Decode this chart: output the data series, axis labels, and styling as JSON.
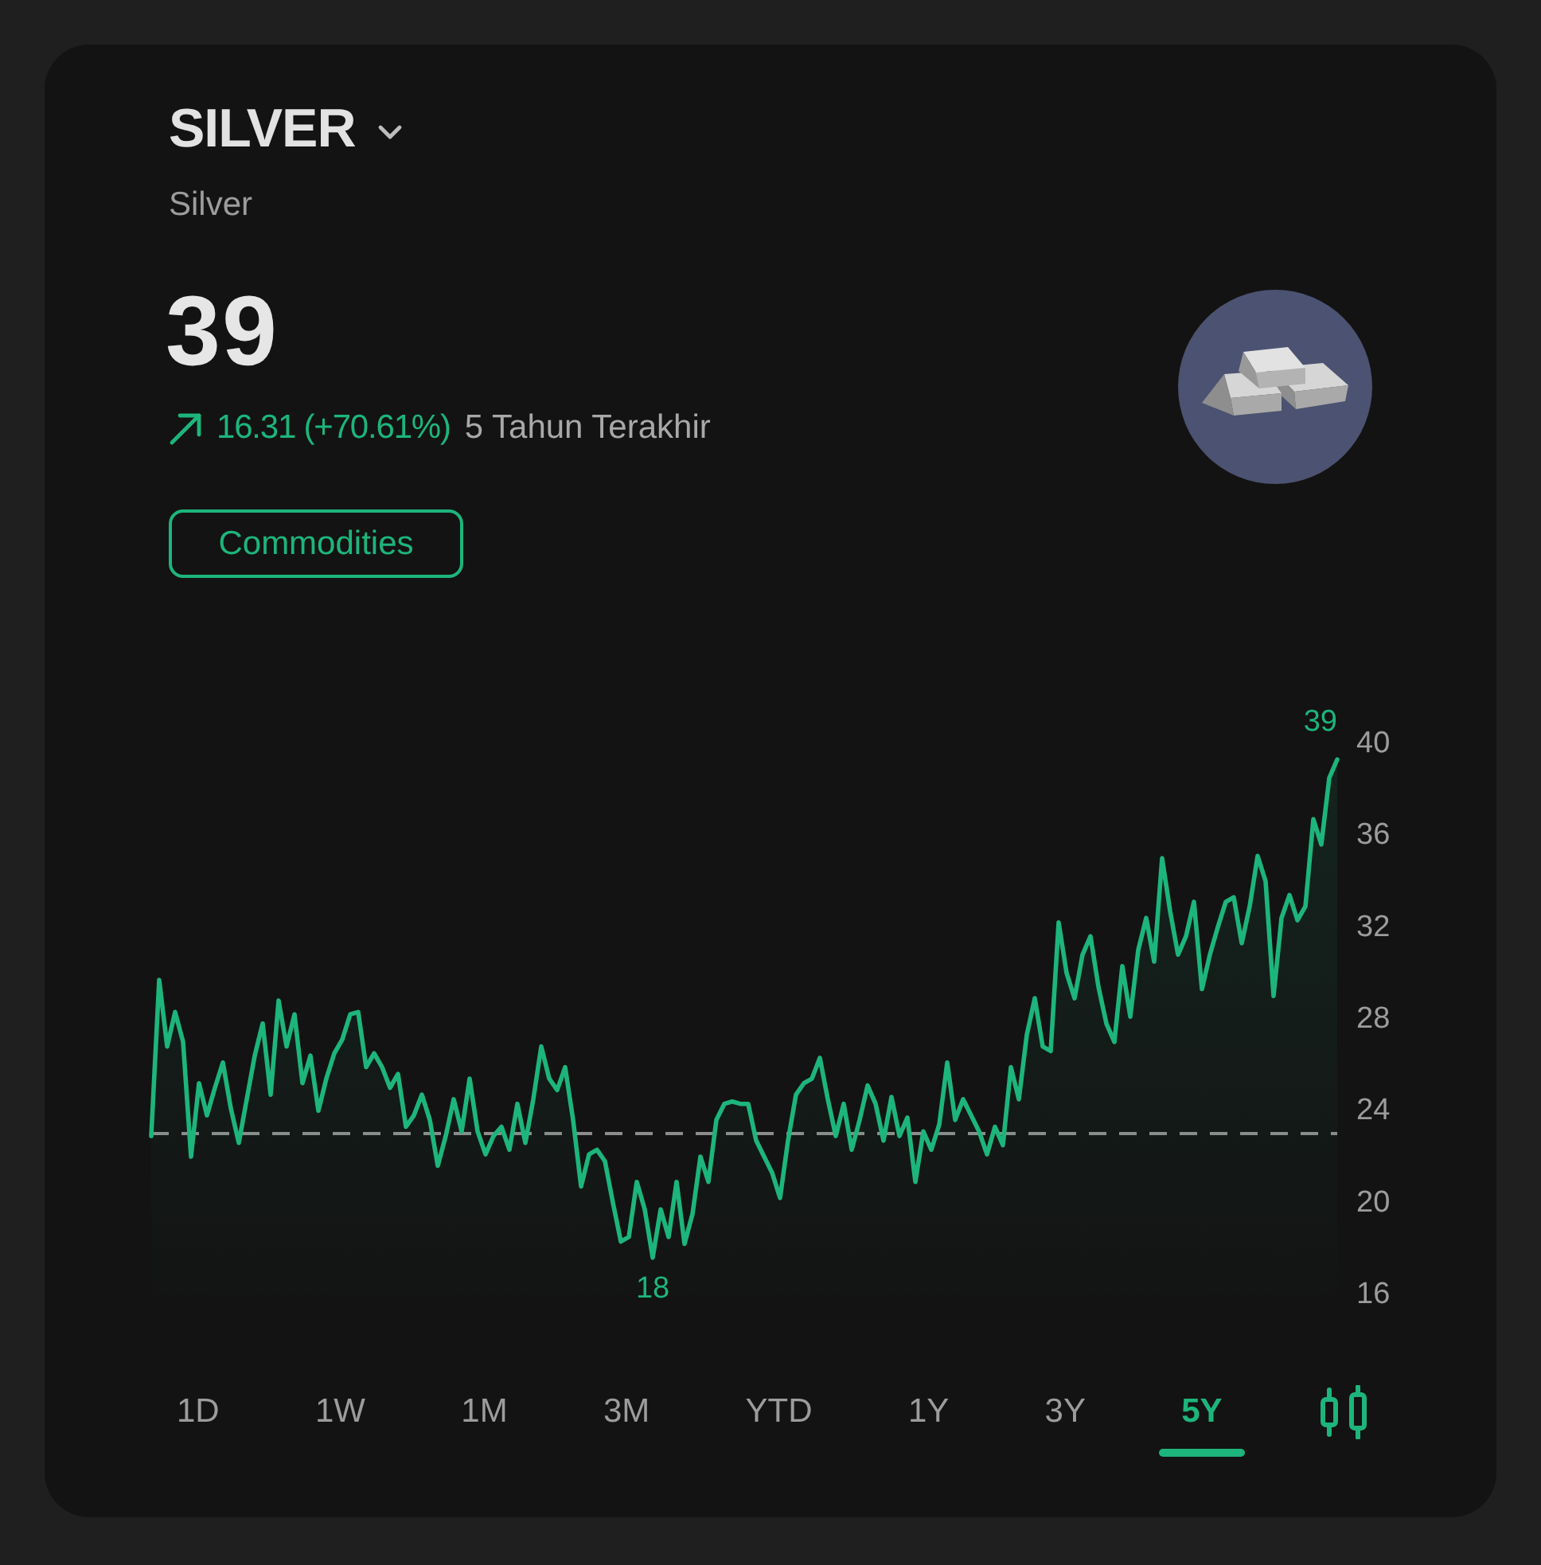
{
  "chart_data": {
    "type": "area",
    "title": "SILVER",
    "subtitle": "Silver",
    "annotations": [
      "39",
      "16.31 (+70.61%)",
      "5 Tahun Terakhir",
      "Commodities",
      "1D",
      "1W",
      "1M",
      "3M",
      "YTD",
      "1Y",
      "3Y",
      "5Y"
    ],
    "categories": [
      null,
      null,
      null,
      null,
      null,
      null,
      null,
      null,
      null,
      null,
      null,
      null,
      null,
      null,
      null,
      null,
      null,
      null,
      null,
      null,
      null,
      null,
      null,
      null,
      null,
      null,
      null,
      null,
      null,
      null,
      null,
      null,
      null,
      null,
      null,
      null,
      null,
      null,
      null,
      null,
      null,
      null,
      null,
      null,
      null,
      null,
      null,
      null,
      null,
      null,
      null,
      null,
      null,
      null,
      null,
      null,
      null,
      null,
      null,
      null,
      null,
      null,
      null,
      null,
      null,
      null,
      null,
      null,
      null,
      null,
      null,
      null,
      null,
      null,
      null,
      null,
      null,
      null,
      null,
      null,
      null,
      null,
      null,
      null,
      null,
      null,
      null,
      null,
      null,
      null,
      null,
      null,
      null,
      null,
      null,
      null,
      null,
      null,
      null,
      null,
      null,
      null,
      null,
      null,
      null,
      null,
      null,
      null,
      null,
      null,
      null,
      null,
      null,
      null,
      null,
      null,
      null,
      null,
      null,
      null,
      null,
      null,
      null,
      null,
      null,
      null,
      null,
      null,
      null,
      null,
      null,
      null,
      null,
      null,
      null,
      null,
      null,
      null,
      null,
      null,
      null,
      null,
      null,
      null,
      null,
      null,
      null,
      null,
      null,
      null
    ],
    "values": [
      22.9,
      29.7,
      26.8,
      28.3,
      27.0,
      22.0,
      25.2,
      23.8,
      25.0,
      26.1,
      24.1,
      22.6,
      24.5,
      26.4,
      27.8,
      24.7,
      28.8,
      26.8,
      28.2,
      25.2,
      26.4,
      24.0,
      25.4,
      26.5,
      27.1,
      28.2,
      28.3,
      25.9,
      26.5,
      25.9,
      25.0,
      25.6,
      23.3,
      23.8,
      24.7,
      23.6,
      21.6,
      22.9,
      24.5,
      23.1,
      25.4,
      23.1,
      22.1,
      22.9,
      23.3,
      22.3,
      24.3,
      22.6,
      24.5,
      26.8,
      25.4,
      24.9,
      25.9,
      23.6,
      20.7,
      22.1,
      22.3,
      21.8,
      20.0,
      18.3,
      18.5,
      20.9,
      19.7,
      17.6,
      19.7,
      18.5,
      20.9,
      18.2,
      19.5,
      22.0,
      20.9,
      23.6,
      24.3,
      24.4,
      24.3,
      24.3,
      22.7,
      22.0,
      21.3,
      20.2,
      22.7,
      24.7,
      25.2,
      25.4,
      26.3,
      24.5,
      22.9,
      24.3,
      22.3,
      23.6,
      25.1,
      24.3,
      22.7,
      24.6,
      22.9,
      23.7,
      20.9,
      23.1,
      22.3,
      23.4,
      26.1,
      23.6,
      24.5,
      23.8,
      23.1,
      22.1,
      23.3,
      22.5,
      25.9,
      24.5,
      27.3,
      28.9,
      26.8,
      26.6,
      32.2,
      30.0,
      28.9,
      30.8,
      31.6,
      29.4,
      27.8,
      27.0,
      30.3,
      28.1,
      31.0,
      32.4,
      30.5,
      35.0,
      32.7,
      30.8,
      31.6,
      33.1,
      29.3,
      30.8,
      32.0,
      33.1,
      33.3,
      31.3,
      32.9,
      35.1,
      34.0,
      29.0,
      32.4,
      33.4,
      32.3,
      32.9,
      36.7,
      35.6,
      38.5,
      39.3
    ],
    "value_labels": [
      null,
      null,
      null,
      null,
      null,
      null,
      null,
      null,
      null,
      null,
      null,
      null,
      null,
      null,
      null,
      null,
      null,
      null,
      null,
      null,
      null,
      null,
      null,
      null,
      null,
      null,
      null,
      null,
      null,
      null,
      null,
      null,
      null,
      null,
      null,
      null,
      null,
      null,
      null,
      null,
      null,
      null,
      null,
      null,
      null,
      null,
      null,
      null,
      null,
      null,
      null,
      null,
      null,
      null,
      null,
      null,
      null,
      null,
      null,
      null,
      null,
      null,
      null,
      "18",
      null,
      null,
      null,
      null,
      null,
      null,
      null,
      null,
      null,
      null,
      null,
      null,
      null,
      null,
      null,
      null,
      null,
      null,
      null,
      null,
      null,
      null,
      null,
      null,
      null,
      null,
      null,
      null,
      null,
      null,
      null,
      null,
      null,
      null,
      null,
      null,
      null,
      null,
      null,
      null,
      null,
      null,
      null,
      null,
      null,
      null,
      null,
      null,
      null,
      null,
      null,
      null,
      null,
      null,
      null,
      null,
      null,
      null,
      null,
      null,
      null,
      null,
      null,
      null,
      null,
      null,
      null,
      null,
      null,
      null,
      null,
      null,
      null,
      null,
      null,
      null,
      null,
      null,
      null,
      null,
      null,
      null,
      null,
      null,
      null,
      "39"
    ],
    "color": "#1db57c",
    "ylim": [
      16,
      40
    ],
    "yticks": [
      16,
      20,
      24,
      28,
      32,
      36,
      40
    ],
    "ref_lines": [
      {
        "axis": "y",
        "value": 23,
        "color": "#8c8c8c",
        "line_style": "dashed"
      }
    ],
    "tick_labels": "y"
  }
}
